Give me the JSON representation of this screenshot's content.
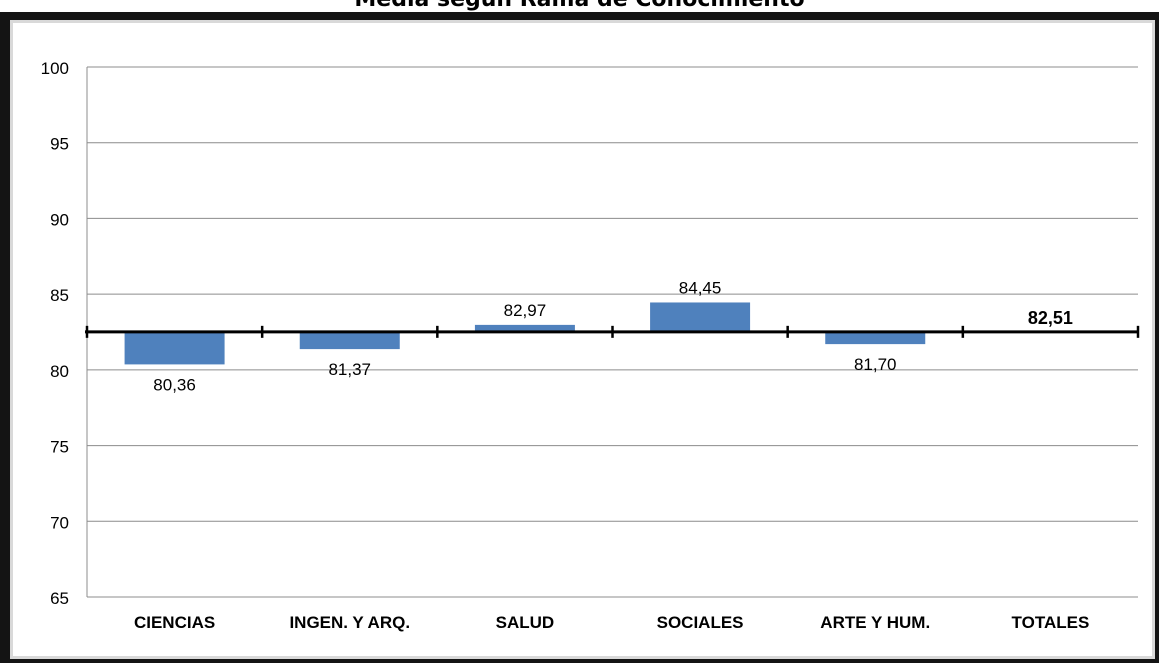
{
  "chart_data": {
    "type": "bar",
    "title": "Media según Rama de Conocimiento",
    "categories": [
      "CIENCIAS",
      "INGEN. Y ARQ.",
      "SALUD",
      "SOCIALES",
      "ARTE Y HUM.",
      "TOTALES"
    ],
    "values": [
      80.36,
      81.37,
      82.97,
      84.45,
      81.7,
      82.51
    ],
    "value_labels": [
      "80,36",
      "81,37",
      "82,97",
      "84,45",
      "81,70",
      "82,51"
    ],
    "baseline": 82.51,
    "ylim": [
      65,
      100
    ],
    "yticks": [
      "65",
      "70",
      "75",
      "80",
      "85",
      "90",
      "95",
      "100"
    ],
    "grid": true,
    "bar_color": "#4f81bd",
    "xlabel": "",
    "ylabel": ""
  }
}
